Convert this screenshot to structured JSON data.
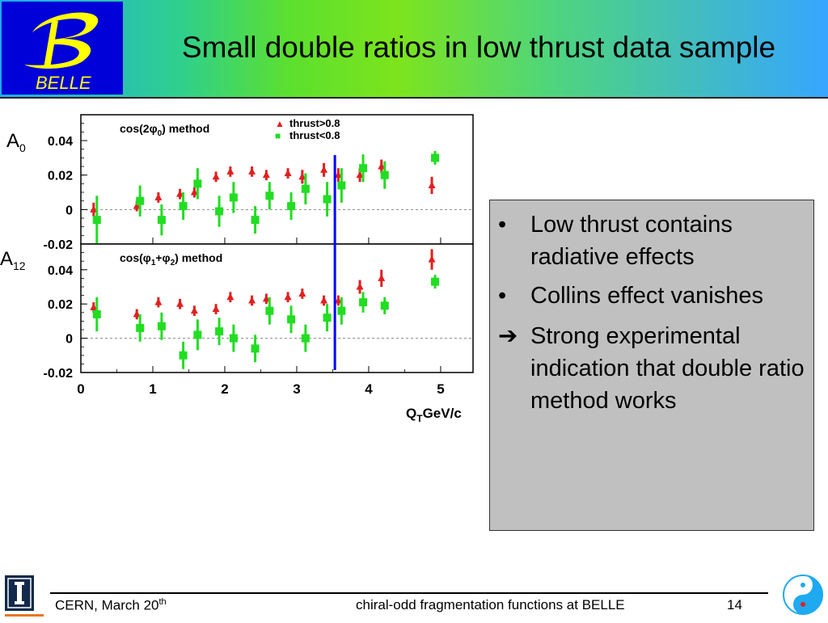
{
  "slide": {
    "title": "Small double ratios in low thrust data sample",
    "logo_text": "BELLE",
    "bullets": [
      {
        "marker": "•",
        "text": "Low thrust contains radiative effects"
      },
      {
        "marker": "•",
        "text": "Collins effect vanishes"
      },
      {
        "marker": "➔",
        "text": "Strong experimental indication that double ratio method works"
      }
    ],
    "footer": {
      "left": "CERN, March 20",
      "left_sup": "th",
      "center": "chiral-odd fragmentation functions at BELLE",
      "page": "14"
    },
    "colors": {
      "panel_bg": "#c0c0c0",
      "logo_bg": "#0000d8",
      "logo_yellow": "#ffff00",
      "marker_red": "#e02020",
      "marker_green": "#22dd22",
      "cut_line": "#0000ff"
    }
  },
  "chart_data": {
    "type": "scatter",
    "x_label_main": "Q",
    "x_label_sub": "T",
    "x_label_unit": "GeV/c",
    "x_ticks": [
      "0",
      "1",
      "2",
      "3",
      "4",
      "5"
    ],
    "xlim": [
      0,
      5.45
    ],
    "vertical_line_x": 3.53,
    "legend": [
      {
        "symbol": "▲",
        "label": "thrust>0.8",
        "color": "#e02020"
      },
      {
        "symbol": "■",
        "label": "thrust<0.8",
        "color": "#22dd22"
      }
    ],
    "panels": [
      {
        "axis_label": "A",
        "axis_sub": "0",
        "method": "cos(2φ",
        "method_sub": "0",
        "method_tail": ") method",
        "ylim": [
          -0.02,
          0.055
        ],
        "y_ticks": [
          "-0.02",
          "0",
          "0.02",
          "0.04"
        ],
        "series": [
          {
            "name": "thrust>0.8",
            "x": [
              0.2,
              0.8,
              1.1,
              1.4,
              1.6,
              1.9,
              2.1,
              2.4,
              2.6,
              2.9,
              3.1,
              3.4,
              3.6,
              3.9,
              4.2,
              4.9
            ],
            "y": [
              0.0,
              0.002,
              0.007,
              0.009,
              0.01,
              0.019,
              0.022,
              0.022,
              0.02,
              0.021,
              0.019,
              0.023,
              0.02,
              0.02,
              0.025,
              0.014
            ],
            "err": [
              0.004,
              0.003,
              0.003,
              0.003,
              0.003,
              0.003,
              0.003,
              0.003,
              0.003,
              0.003,
              0.004,
              0.004,
              0.004,
              0.004,
              0.004,
              0.005
            ]
          },
          {
            "name": "thrust<0.8",
            "x": [
              0.2,
              0.8,
              1.1,
              1.4,
              1.6,
              1.9,
              2.1,
              2.4,
              2.6,
              2.9,
              3.1,
              3.4,
              3.6,
              3.9,
              4.2,
              4.9
            ],
            "y": [
              -0.006,
              0.005,
              -0.006,
              0.002,
              0.015,
              -0.001,
              0.007,
              -0.006,
              0.008,
              0.002,
              0.012,
              0.006,
              0.014,
              0.024,
              0.02,
              0.03
            ],
            "err": [
              0.014,
              0.009,
              0.009,
              0.008,
              0.009,
              0.009,
              0.009,
              0.008,
              0.008,
              0.008,
              0.009,
              0.01,
              0.01,
              0.008,
              0.008,
              0.004
            ]
          }
        ]
      },
      {
        "axis_label": "A",
        "axis_sub": "12",
        "method": "cos(φ",
        "method_sub": "1",
        "method_mid": "+φ",
        "method_sub2": "2",
        "method_tail": ") method",
        "ylim": [
          -0.02,
          0.055
        ],
        "y_ticks": [
          "-0.02",
          "0",
          "0.02",
          "0.04"
        ],
        "series": [
          {
            "name": "thrust>0.8",
            "x": [
              0.2,
              0.8,
              1.1,
              1.4,
              1.6,
              1.9,
              2.1,
              2.4,
              2.6,
              2.9,
              3.1,
              3.4,
              3.6,
              3.9,
              4.2,
              4.9
            ],
            "y": [
              0.018,
              0.014,
              0.021,
              0.02,
              0.016,
              0.017,
              0.024,
              0.022,
              0.023,
              0.024,
              0.026,
              0.022,
              0.022,
              0.03,
              0.035,
              0.046
            ],
            "err": [
              0.003,
              0.003,
              0.003,
              0.003,
              0.003,
              0.003,
              0.003,
              0.003,
              0.003,
              0.003,
              0.003,
              0.003,
              0.003,
              0.004,
              0.005,
              0.006
            ]
          },
          {
            "name": "thrust<0.8",
            "x": [
              0.2,
              0.8,
              1.1,
              1.4,
              1.6,
              1.9,
              2.1,
              2.4,
              2.6,
              2.9,
              3.1,
              3.4,
              3.6,
              3.9,
              4.2,
              4.9
            ],
            "y": [
              0.014,
              0.006,
              0.007,
              -0.01,
              0.002,
              0.004,
              0.0,
              -0.006,
              0.016,
              0.011,
              0.0,
              0.012,
              0.016,
              0.021,
              0.019,
              0.033
            ],
            "err": [
              0.01,
              0.008,
              0.008,
              0.008,
              0.009,
              0.008,
              0.008,
              0.008,
              0.008,
              0.008,
              0.008,
              0.008,
              0.008,
              0.006,
              0.005,
              0.004
            ]
          }
        ]
      }
    ]
  }
}
